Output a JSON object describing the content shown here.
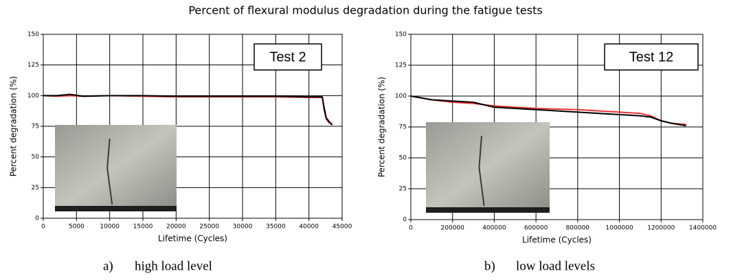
{
  "title": "Percent of flexural modulus degradation during the fatigue tests",
  "chart_data": [
    {
      "type": "line",
      "xlabel": "Lifetime (Cycles)",
      "ylabel": "Percent degradation (%)",
      "annotation": "Test 2",
      "caption_label": "a)",
      "caption": "high load level",
      "xlim": [
        0,
        45000
      ],
      "xticks": [
        0,
        5000,
        10000,
        15000,
        20000,
        25000,
        30000,
        35000,
        40000,
        45000
      ],
      "ylim": [
        0,
        150
      ],
      "yticks": [
        0,
        25,
        50,
        75,
        100,
        125,
        150
      ],
      "grid": true,
      "series": [
        {
          "color": "#e8312f",
          "x": [
            0,
            2000,
            4000,
            6000,
            10000,
            15000,
            20000,
            25000,
            30000,
            35000,
            40000,
            42000,
            42300,
            42600,
            43000,
            43500
          ],
          "values": [
            100,
            99.5,
            100,
            99.5,
            100,
            99.5,
            99,
            99,
            99,
            99,
            98.5,
            98.5,
            88,
            81,
            78,
            77
          ]
        },
        {
          "color": "#000000",
          "x": [
            0,
            2000,
            4000,
            6000,
            10000,
            15000,
            20000,
            25000,
            30000,
            35000,
            40000,
            42000,
            42300,
            42600,
            43000,
            43500
          ],
          "values": [
            100,
            100,
            101,
            99.5,
            100,
            100,
            99.5,
            99.5,
            99.5,
            99.5,
            99,
            99,
            90,
            82,
            79,
            76
          ]
        }
      ]
    },
    {
      "type": "line",
      "xlabel": "Lifetime (Cycles)",
      "ylabel": "Percent degradation (%)",
      "annotation": "Test 12",
      "caption_label": "b)",
      "caption": "low load levels",
      "xlim": [
        0,
        1400000
      ],
      "xticks": [
        0,
        200000,
        400000,
        600000,
        800000,
        1000000,
        1200000,
        1400000
      ],
      "ylim": [
        0,
        150
      ],
      "yticks": [
        0,
        25,
        50,
        75,
        100,
        125,
        150
      ],
      "grid": true,
      "series": [
        {
          "color": "#e8312f",
          "x": [
            0,
            100000,
            200000,
            300000,
            400000,
            600000,
            800000,
            1000000,
            1100000,
            1150000,
            1200000,
            1250000,
            1320000
          ],
          "values": [
            100,
            97,
            95,
            94,
            92,
            90,
            89,
            87,
            86,
            84,
            80,
            78,
            77
          ]
        },
        {
          "color": "#000000",
          "x": [
            0,
            100000,
            200000,
            300000,
            350000,
            400000,
            600000,
            800000,
            1000000,
            1100000,
            1150000,
            1200000,
            1250000,
            1320000
          ],
          "values": [
            100,
            97,
            96,
            95,
            93,
            91,
            89,
            87,
            85,
            84,
            83,
            80,
            78,
            76
          ]
        }
      ]
    }
  ]
}
